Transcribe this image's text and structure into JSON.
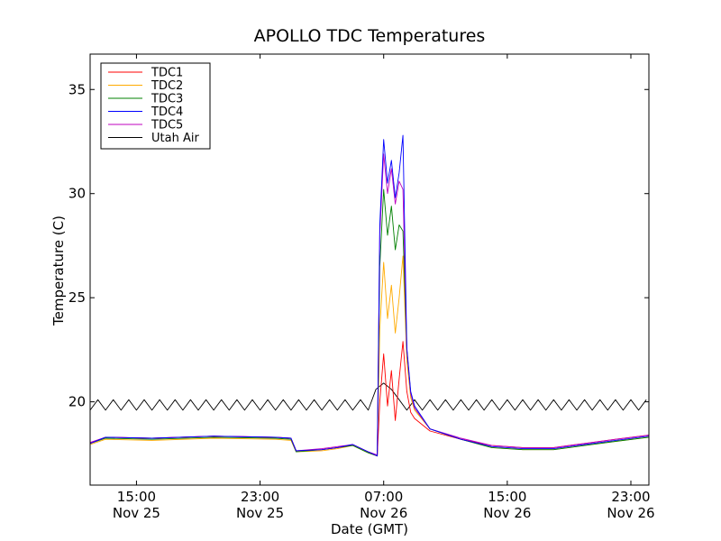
{
  "chart_data": {
    "type": "line",
    "title": "APOLLO TDC Temperatures",
    "xlabel": "Date (GMT)",
    "ylabel": "Temperature (C)",
    "x_unit": "hours",
    "xlim": [
      "Nov 25 12:00",
      "Nov 27 00:10"
    ],
    "ylim": [
      16,
      36.7
    ],
    "grid": false,
    "legend_position": "top-left",
    "x_ticks": [
      {
        "x": "Nov 25 15:00",
        "time": "15:00",
        "date": "Nov 25"
      },
      {
        "x": "Nov 25 23:00",
        "time": "23:00",
        "date": "Nov 25"
      },
      {
        "x": "Nov 26 07:00",
        "time": "07:00",
        "date": "Nov 26"
      },
      {
        "x": "Nov 26 15:00",
        "time": "15:00",
        "date": "Nov 26"
      },
      {
        "x": "Nov 26 23:00",
        "time": "23:00",
        "date": "Nov 26"
      }
    ],
    "y_ticks": [
      20,
      25,
      30,
      35
    ],
    "series": [
      {
        "name": "TDC1",
        "color": "#ff0000",
        "x": [
          "Nov 25 12:00",
          "Nov 25 13:00",
          "Nov 25 16:00",
          "Nov 25 20:00",
          "Nov 26 00:00",
          "Nov 26 01:00",
          "Nov 26 01:20",
          "Nov 26 03:00",
          "Nov 26 04:00",
          "Nov 26 05:00",
          "Nov 26 06:00",
          "Nov 26 06:35",
          "Nov 26 06:45",
          "Nov 26 07:00",
          "Nov 26 07:15",
          "Nov 26 07:30",
          "Nov 26 07:45",
          "Nov 26 08:00",
          "Nov 26 08:15",
          "Nov 26 08:30",
          "Nov 26 08:45",
          "Nov 26 09:00",
          "Nov 26 10:00",
          "Nov 26 12:00",
          "Nov 26 14:00",
          "Nov 26 16:00",
          "Nov 26 18:00",
          "Nov 26 20:00",
          "Nov 26 22:00",
          "Nov 27 00:10"
        ],
        "values": [
          18.0,
          18.3,
          18.25,
          18.35,
          18.3,
          18.25,
          17.65,
          17.7,
          17.8,
          17.95,
          17.6,
          17.4,
          20.0,
          22.3,
          19.8,
          21.5,
          19.1,
          21.1,
          22.9,
          20.5,
          19.5,
          19.2,
          18.6,
          18.2,
          17.9,
          17.8,
          17.8,
          18.0,
          18.2,
          18.4
        ]
      },
      {
        "name": "TDC2",
        "color": "#ffaa00",
        "x": [
          "Nov 25 12:00",
          "Nov 25 13:00",
          "Nov 25 16:00",
          "Nov 25 20:00",
          "Nov 26 00:00",
          "Nov 26 01:00",
          "Nov 26 01:20",
          "Nov 26 03:00",
          "Nov 26 04:00",
          "Nov 26 05:00",
          "Nov 26 06:00",
          "Nov 26 06:35",
          "Nov 26 06:45",
          "Nov 26 07:00",
          "Nov 26 07:15",
          "Nov 26 07:30",
          "Nov 26 07:45",
          "Nov 26 08:00",
          "Nov 26 08:15",
          "Nov 26 08:30",
          "Nov 26 08:45",
          "Nov 26 09:00",
          "Nov 26 10:00",
          "Nov 26 12:00",
          "Nov 26 14:00",
          "Nov 26 16:00",
          "Nov 26 18:00",
          "Nov 26 20:00",
          "Nov 26 22:00",
          "Nov 27 00:10"
        ],
        "values": [
          17.95,
          18.2,
          18.15,
          18.25,
          18.2,
          18.15,
          17.6,
          17.65,
          17.75,
          17.9,
          17.55,
          17.4,
          23.5,
          26.7,
          24.0,
          25.6,
          23.3,
          25.0,
          27.0,
          22.0,
          20.2,
          19.6,
          18.7,
          18.2,
          17.8,
          17.7,
          17.7,
          17.9,
          18.1,
          18.3
        ]
      },
      {
        "name": "TDC3",
        "color": "#008000",
        "x": [
          "Nov 25 12:00",
          "Nov 25 13:00",
          "Nov 25 16:00",
          "Nov 25 20:00",
          "Nov 26 00:00",
          "Nov 26 01:00",
          "Nov 26 01:20",
          "Nov 26 03:00",
          "Nov 26 04:00",
          "Nov 26 05:00",
          "Nov 26 06:00",
          "Nov 26 06:35",
          "Nov 26 06:45",
          "Nov 26 07:00",
          "Nov 26 07:15",
          "Nov 26 07:30",
          "Nov 26 07:45",
          "Nov 26 08:00",
          "Nov 26 08:15",
          "Nov 26 08:30",
          "Nov 26 08:45",
          "Nov 26 09:00",
          "Nov 26 10:00",
          "Nov 26 12:00",
          "Nov 26 14:00",
          "Nov 26 16:00",
          "Nov 26 18:00",
          "Nov 26 20:00",
          "Nov 26 22:00",
          "Nov 27 00:10"
        ],
        "values": [
          18.0,
          18.25,
          18.2,
          18.3,
          18.25,
          18.2,
          17.6,
          17.7,
          17.8,
          17.9,
          17.55,
          17.4,
          26.5,
          30.2,
          28.0,
          29.4,
          27.3,
          28.5,
          28.2,
          22.5,
          20.4,
          19.7,
          18.7,
          18.2,
          17.8,
          17.7,
          17.7,
          17.9,
          18.1,
          18.3
        ]
      },
      {
        "name": "TDC4",
        "color": "#0000ff",
        "x": [
          "Nov 25 12:00",
          "Nov 25 13:00",
          "Nov 25 16:00",
          "Nov 25 20:00",
          "Nov 26 00:00",
          "Nov 26 01:00",
          "Nov 26 01:20",
          "Nov 26 03:00",
          "Nov 26 04:00",
          "Nov 26 05:00",
          "Nov 26 06:00",
          "Nov 26 06:35",
          "Nov 26 06:45",
          "Nov 26 07:00",
          "Nov 26 07:15",
          "Nov 26 07:30",
          "Nov 26 07:45",
          "Nov 26 08:00",
          "Nov 26 08:15",
          "Nov 26 08:30",
          "Nov 26 08:45",
          "Nov 26 09:00",
          "Nov 26 10:00",
          "Nov 26 12:00",
          "Nov 26 14:00",
          "Nov 26 16:00",
          "Nov 26 18:00",
          "Nov 26 20:00",
          "Nov 26 22:00",
          "Nov 27 00:10"
        ],
        "values": [
          18.0,
          18.3,
          18.25,
          18.35,
          18.3,
          18.25,
          17.65,
          17.7,
          17.8,
          17.95,
          17.6,
          17.4,
          28.5,
          32.6,
          30.5,
          31.6,
          29.8,
          31.0,
          32.8,
          22.6,
          20.5,
          19.8,
          18.7,
          18.2,
          17.85,
          17.75,
          17.75,
          17.95,
          18.15,
          18.35
        ]
      },
      {
        "name": "TDC5",
        "color": "#bf00bf",
        "x": [
          "Nov 25 12:00",
          "Nov 25 13:00",
          "Nov 25 16:00",
          "Nov 25 20:00",
          "Nov 26 00:00",
          "Nov 26 01:00",
          "Nov 26 01:20",
          "Nov 26 03:00",
          "Nov 26 04:00",
          "Nov 26 05:00",
          "Nov 26 06:00",
          "Nov 26 06:35",
          "Nov 26 06:45",
          "Nov 26 07:00",
          "Nov 26 07:15",
          "Nov 26 07:30",
          "Nov 26 07:45",
          "Nov 26 08:00",
          "Nov 26 08:15",
          "Nov 26 08:30",
          "Nov 26 08:45",
          "Nov 26 09:00",
          "Nov 26 10:00",
          "Nov 26 12:00",
          "Nov 26 14:00",
          "Nov 26 16:00",
          "Nov 26 18:00",
          "Nov 26 20:00",
          "Nov 26 22:00",
          "Nov 27 00:10"
        ],
        "values": [
          18.05,
          18.3,
          18.25,
          18.35,
          18.3,
          18.25,
          17.65,
          17.75,
          17.85,
          17.95,
          17.6,
          17.45,
          28.0,
          31.9,
          30.0,
          31.2,
          29.5,
          30.6,
          30.2,
          22.5,
          20.4,
          19.7,
          18.7,
          18.25,
          17.9,
          17.8,
          17.8,
          18.0,
          18.2,
          18.4
        ]
      },
      {
        "name": "Utah Air",
        "color": "#000000",
        "x": [
          "Nov 25 12:00",
          "Nov 25 12:30",
          "Nov 25 13:00",
          "Nov 25 13:30",
          "Nov 25 14:00",
          "Nov 25 14:30",
          "Nov 25 15:00",
          "Nov 25 15:30",
          "Nov 25 16:00",
          "Nov 25 16:30",
          "Nov 25 17:00",
          "Nov 25 17:30",
          "Nov 25 18:00",
          "Nov 25 18:30",
          "Nov 25 19:00",
          "Nov 25 19:30",
          "Nov 25 20:00",
          "Nov 25 20:30",
          "Nov 25 21:00",
          "Nov 25 21:30",
          "Nov 25 22:00",
          "Nov 25 22:30",
          "Nov 25 23:00",
          "Nov 25 23:30",
          "Nov 26 00:00",
          "Nov 26 00:30",
          "Nov 26 01:00",
          "Nov 26 01:30",
          "Nov 26 02:00",
          "Nov 26 02:30",
          "Nov 26 03:00",
          "Nov 26 03:30",
          "Nov 26 04:00",
          "Nov 26 04:30",
          "Nov 26 05:00",
          "Nov 26 05:30",
          "Nov 26 06:00",
          "Nov 26 06:30",
          "Nov 26 07:00",
          "Nov 26 07:30",
          "Nov 26 08:00",
          "Nov 26 08:30",
          "Nov 26 09:00",
          "Nov 26 09:30",
          "Nov 26 10:00",
          "Nov 26 10:30",
          "Nov 26 11:00",
          "Nov 26 11:30",
          "Nov 26 12:00",
          "Nov 26 12:30",
          "Nov 26 13:00",
          "Nov 26 13:30",
          "Nov 26 14:00",
          "Nov 26 14:30",
          "Nov 26 15:00",
          "Nov 26 15:30",
          "Nov 26 16:00",
          "Nov 26 16:30",
          "Nov 26 17:00",
          "Nov 26 17:30",
          "Nov 26 18:00",
          "Nov 26 18:30",
          "Nov 26 19:00",
          "Nov 26 19:30",
          "Nov 26 20:00",
          "Nov 26 20:30",
          "Nov 26 21:00",
          "Nov 26 21:30",
          "Nov 26 22:00",
          "Nov 26 22:30",
          "Nov 26 23:00",
          "Nov 26 23:30",
          "Nov 27 00:00"
        ],
        "values": [
          19.6,
          20.1,
          19.6,
          20.1,
          19.6,
          20.1,
          19.6,
          20.1,
          19.6,
          20.1,
          19.6,
          20.1,
          19.6,
          20.1,
          19.6,
          20.1,
          19.6,
          20.1,
          19.6,
          20.1,
          19.6,
          20.1,
          19.6,
          20.1,
          19.6,
          20.1,
          19.6,
          20.1,
          19.6,
          20.1,
          19.6,
          20.1,
          19.6,
          20.1,
          19.6,
          20.1,
          19.6,
          20.6,
          20.9,
          20.6,
          20.1,
          19.6,
          20.1,
          19.6,
          20.1,
          19.6,
          20.1,
          19.6,
          20.1,
          19.6,
          20.1,
          19.6,
          20.1,
          19.6,
          20.1,
          19.6,
          20.1,
          19.6,
          20.1,
          19.6,
          20.1,
          19.6,
          20.1,
          19.6,
          20.1,
          19.6,
          20.1,
          19.6,
          20.1,
          19.6,
          20.1,
          19.6,
          20.1
        ]
      }
    ]
  }
}
